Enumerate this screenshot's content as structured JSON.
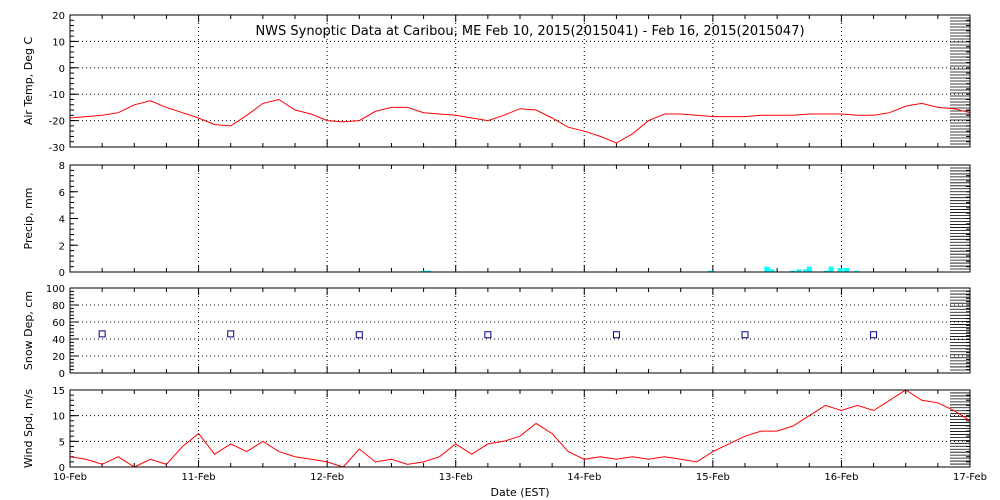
{
  "chart_data": {
    "title": "NWS Synoptic Data at Caribou, ME   Feb 10, 2015(2015041) - Feb 16, 2015(2015047)",
    "xlabel": "Date (EST)",
    "x_tick_labels": [
      "10-Feb",
      "11-Feb",
      "12-Feb",
      "13-Feb",
      "14-Feb",
      "15-Feb",
      "16-Feb",
      "17-Feb"
    ],
    "x_range_days": [
      0,
      7
    ],
    "vertical_grid": "dotted at each day",
    "panels": [
      {
        "id": "air-temp",
        "type": "line",
        "ylabel": "Air Temp, Deg C",
        "ylim": [
          -30,
          20
        ],
        "yticks": [
          -30,
          -20,
          -10,
          0,
          10,
          20
        ],
        "horizontal_grid": true,
        "color": "#ff0000",
        "x": [
          0,
          0.125,
          0.25,
          0.375,
          0.5,
          0.625,
          0.75,
          0.875,
          1.0,
          1.125,
          1.25,
          1.375,
          1.5,
          1.625,
          1.75,
          1.875,
          2.0,
          2.125,
          2.25,
          2.375,
          2.5,
          2.625,
          2.75,
          2.875,
          3.0,
          3.125,
          3.25,
          3.375,
          3.5,
          3.625,
          3.75,
          3.875,
          4.0,
          4.125,
          4.25,
          4.375,
          4.5,
          4.625,
          4.75,
          4.875,
          5.0,
          5.125,
          5.25,
          5.375,
          5.5,
          5.625,
          5.75,
          5.875,
          6.0,
          6.125,
          6.25,
          6.375,
          6.5,
          6.625,
          6.75,
          6.875,
          7.0
        ],
        "y": [
          -19,
          -18.5,
          -18,
          -17,
          -14,
          -12.5,
          -15,
          -17,
          -19,
          -21.5,
          -22,
          -18,
          -13.5,
          -12,
          -16,
          -17.5,
          -20,
          -20.5,
          -20,
          -16.5,
          -15,
          -15,
          -17,
          -17.5,
          -18,
          -19,
          -20,
          -18,
          -15.5,
          -16,
          -19,
          -22.5,
          -24,
          -26,
          -28.5,
          -25,
          -20,
          -17.5,
          -17.5,
          -18,
          -18.5,
          -18.5,
          -18.5,
          -18,
          -18,
          -18,
          -17.5,
          -17.5,
          -17.5,
          -18,
          -18,
          -17,
          -14.5,
          -13.5,
          -15,
          -15.5,
          -17
        ]
      },
      {
        "id": "precip",
        "type": "bar",
        "ylabel": "Precip, mm",
        "ylim": [
          0,
          8
        ],
        "yticks": [
          0,
          2,
          4,
          6,
          8
        ],
        "horizontal_grid": false,
        "color": "#00ffff",
        "x": [
          2.75,
          2.79,
          4.98,
          5.42,
          5.46,
          5.62,
          5.67,
          5.72,
          5.75,
          5.88,
          5.92,
          5.99,
          6.04,
          6.12
        ],
        "y": [
          0.1,
          0.1,
          0.1,
          0.4,
          0.2,
          0.1,
          0.2,
          0.2,
          0.4,
          0.1,
          0.4,
          0.3,
          0.3,
          0.1
        ]
      },
      {
        "id": "snow-depth",
        "type": "scatter",
        "ylabel": "Snow Dep, cm",
        "ylim": [
          0,
          100
        ],
        "yticks": [
          0,
          20,
          40,
          60,
          80,
          100
        ],
        "horizontal_grid": true,
        "color": "#00008b",
        "x": [
          0.25,
          1.25,
          2.25,
          3.25,
          4.25,
          5.25,
          6.25
        ],
        "y": [
          46,
          46,
          45,
          45,
          45,
          45,
          45
        ]
      },
      {
        "id": "wind-speed",
        "type": "line",
        "ylabel": "Wind Spd, m/s",
        "ylim": [
          0,
          15
        ],
        "yticks": [
          0,
          5,
          10,
          15
        ],
        "horizontal_grid": true,
        "color": "#ff0000",
        "x": [
          0,
          0.125,
          0.25,
          0.375,
          0.5,
          0.625,
          0.75,
          0.875,
          1.0,
          1.125,
          1.25,
          1.375,
          1.5,
          1.625,
          1.75,
          1.875,
          2.0,
          2.125,
          2.25,
          2.375,
          2.5,
          2.625,
          2.75,
          2.875,
          3.0,
          3.125,
          3.25,
          3.375,
          3.5,
          3.625,
          3.75,
          3.875,
          4.0,
          4.125,
          4.25,
          4.375,
          4.5,
          4.625,
          4.75,
          4.875,
          5.0,
          5.125,
          5.25,
          5.375,
          5.5,
          5.625,
          5.75,
          5.875,
          6.0,
          6.125,
          6.25,
          6.375,
          6.5,
          6.625,
          6.75,
          6.875,
          7.0
        ],
        "y": [
          2,
          1.5,
          0.5,
          2,
          0,
          1.5,
          0.5,
          4,
          6.5,
          2.5,
          4.5,
          3,
          5,
          3,
          2,
          1.5,
          1,
          0,
          3.5,
          1,
          1.5,
          0.5,
          1,
          2,
          4.5,
          2.5,
          4.5,
          5,
          6,
          8.5,
          6.5,
          3,
          1.5,
          2,
          1.5,
          2,
          1.5,
          2,
          1.5,
          1,
          3,
          4.5,
          6,
          7,
          7,
          8,
          10,
          12,
          11,
          12,
          11,
          13,
          15,
          13,
          12.5,
          11,
          9
        ]
      }
    ]
  }
}
